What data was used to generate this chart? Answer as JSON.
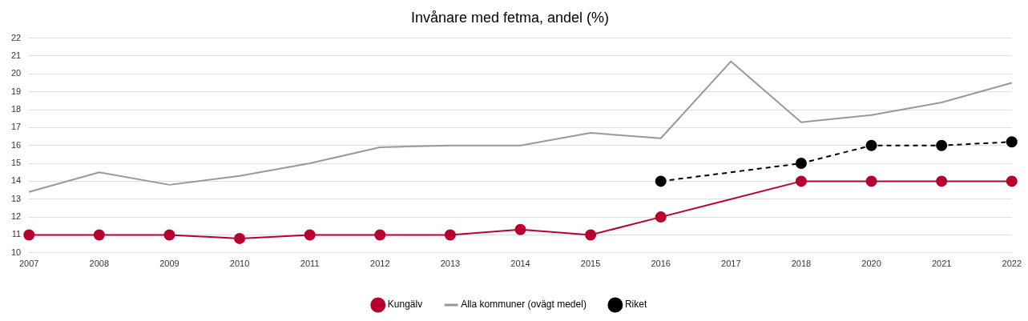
{
  "chart_data": {
    "type": "line",
    "title": "Invånare med fetma, andel (%)",
    "categories": [
      "2007",
      "2008",
      "2009",
      "2010",
      "2011",
      "2012",
      "2013",
      "2014",
      "2015",
      "2016",
      "2017",
      "2018",
      "2020",
      "2021",
      "2022"
    ],
    "series": [
      {
        "name": "Kungälv",
        "color": "#b8002e",
        "marker": "circle",
        "line_style": "solid",
        "values": [
          11,
          11,
          11,
          10.8,
          11,
          11,
          11,
          11.3,
          11,
          12,
          null,
          14,
          14,
          14,
          14
        ]
      },
      {
        "name": "Alla kommuner (ovägt medel)",
        "color": "#999999",
        "marker": "none",
        "line_style": "solid",
        "values": [
          13.4,
          14.5,
          13.8,
          14.3,
          15.0,
          15.9,
          16.0,
          16.0,
          16.7,
          16.4,
          20.7,
          17.3,
          17.7,
          18.4,
          19.5
        ]
      },
      {
        "name": "Riket",
        "color": "#000000",
        "marker": "circle",
        "line_style": "dashed",
        "values": [
          null,
          null,
          null,
          null,
          null,
          null,
          null,
          null,
          null,
          14,
          null,
          15,
          16,
          16,
          16.2
        ]
      }
    ],
    "ylim": [
      10,
      22
    ],
    "yticks": [
      10,
      11,
      12,
      13,
      14,
      15,
      16,
      17,
      18,
      19,
      20,
      21,
      22
    ],
    "grid": "y",
    "legend": "bottom"
  }
}
